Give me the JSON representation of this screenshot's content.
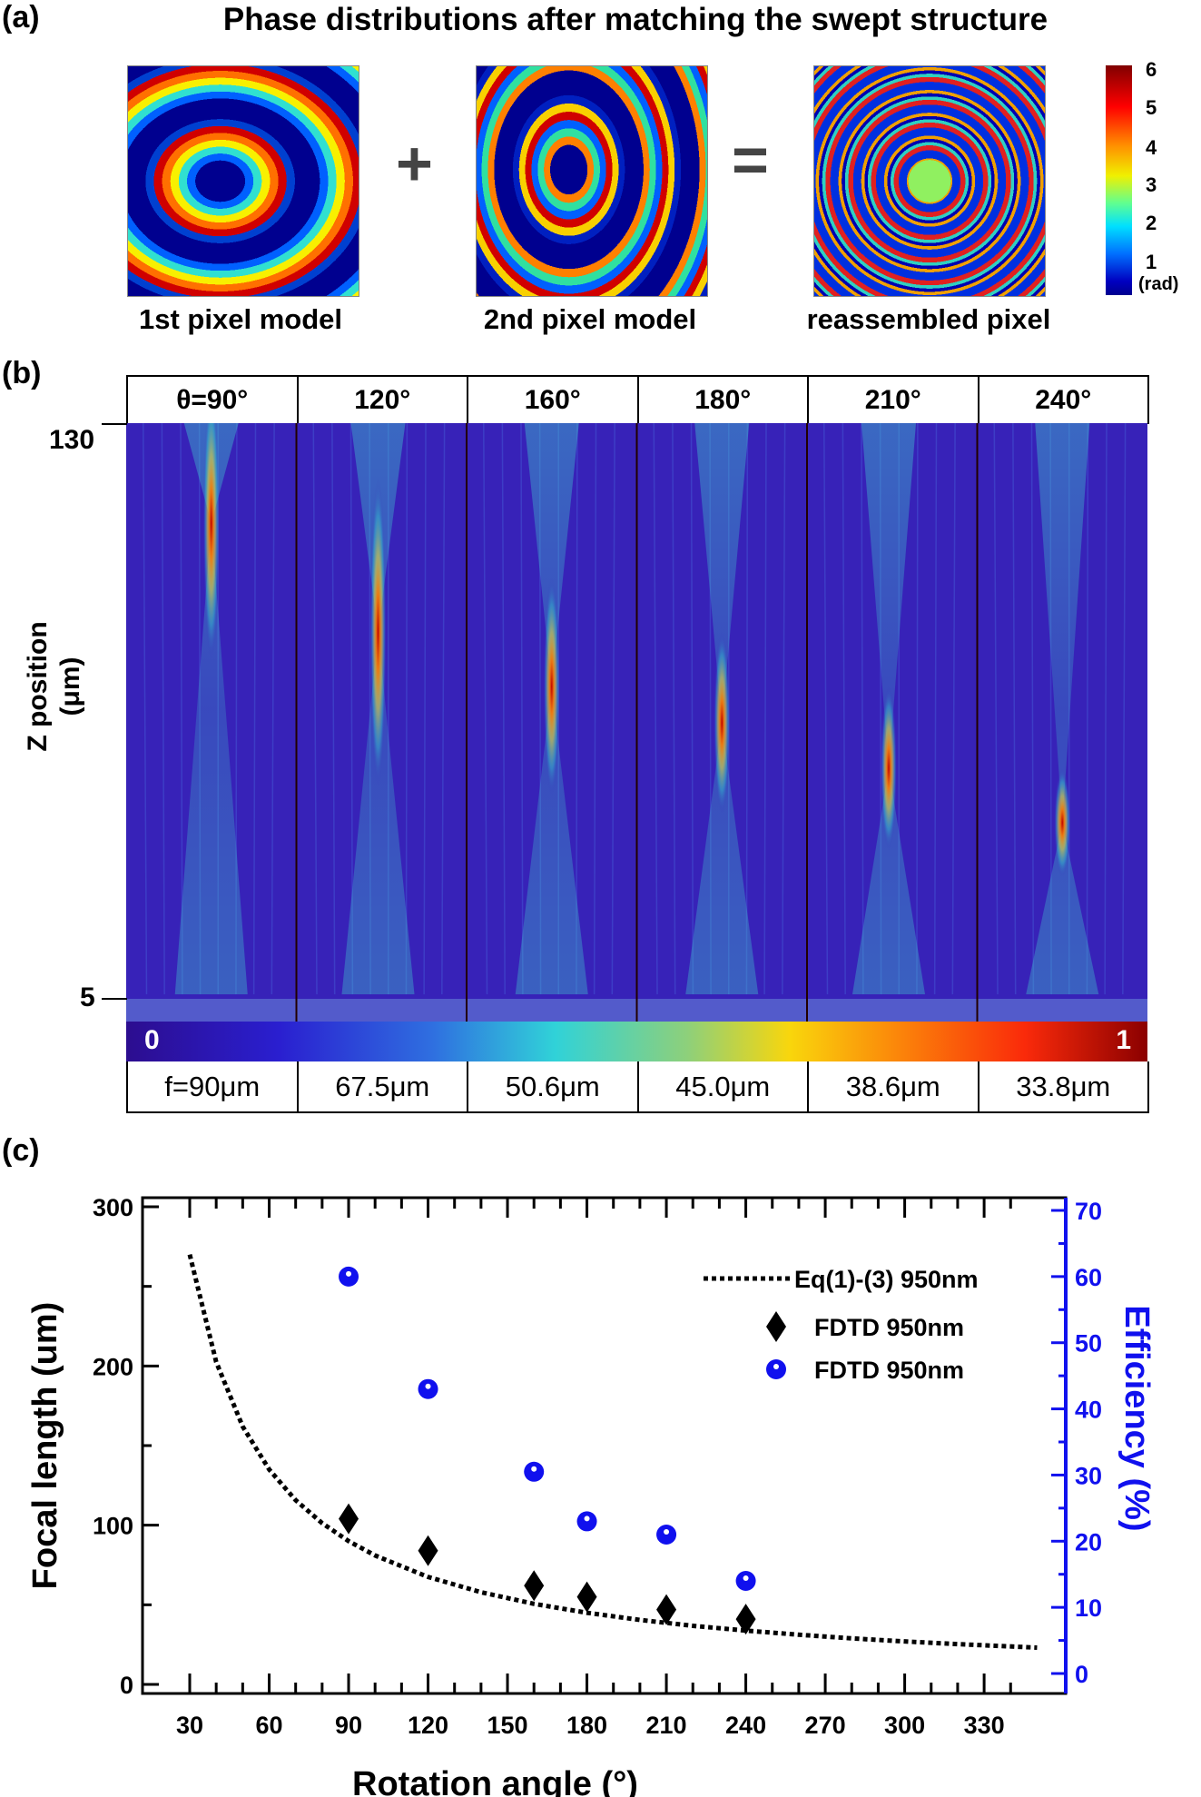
{
  "panel_a": {
    "label": "(a)",
    "title": "Phase distributions after matching the swept structure",
    "images": [
      {
        "caption": "1st pixel model"
      },
      {
        "caption": "2nd pixel model"
      },
      {
        "caption": "reassembled pixel"
      }
    ],
    "plus": "+",
    "equals": "=",
    "colorbar": {
      "ticks": [
        "6",
        "5",
        "4",
        "3",
        "2",
        "1"
      ],
      "unit": "(rad)",
      "colormap": "jet"
    }
  },
  "panel_b": {
    "label": "(b)",
    "angles": [
      "θ=90°",
      "120°",
      "160°",
      "180°",
      "210°",
      "240°"
    ],
    "focal": [
      "f=90μm",
      "67.5μm",
      "50.6μm",
      "45.0μm",
      "38.6μm",
      "33.8μm"
    ],
    "y_axis": {
      "label_line1": "Z position",
      "label_line2": "(μm)",
      "top": "130",
      "bottom": "5"
    },
    "colorbar": {
      "min": "0",
      "max": "1"
    },
    "background_color": "#3722b8"
  },
  "chart_data": {
    "label": "(c)",
    "type": "scatter",
    "xlabel": "Rotation angle (°)",
    "ylabel": "Focal length (um)",
    "y2label": "Efficiency (%)",
    "xlim": [
      10,
      360
    ],
    "ylim": [
      0,
      310
    ],
    "y2lim": [
      -2,
      72
    ],
    "xticks": [
      30,
      60,
      90,
      120,
      150,
      180,
      210,
      240,
      270,
      300,
      330
    ],
    "yticks": [
      0,
      100,
      200,
      300
    ],
    "y2ticks": [
      0,
      10,
      20,
      30,
      40,
      50,
      60,
      70
    ],
    "legend_placement": "top-right",
    "series": [
      {
        "name": "Eq(1)-(3) 950nm",
        "style": "dotted-line",
        "color": "#000000",
        "axis": "left",
        "x": [
          30,
          40,
          50,
          60,
          70,
          80,
          90,
          100,
          120,
          140,
          160,
          180,
          200,
          220,
          240,
          260,
          280,
          300,
          320,
          350
        ],
        "y": [
          270,
          202.5,
          162,
          135,
          115.7,
          101.3,
          90,
          81,
          67.5,
          57.9,
          50.6,
          45,
          40.5,
          36.8,
          33.8,
          31.2,
          28.9,
          27,
          25.3,
          23.1
        ]
      },
      {
        "name": "FDTD 950nm",
        "style": "diamond",
        "color": "#000000",
        "axis": "left",
        "x": [
          90,
          120,
          160,
          180,
          210,
          240
        ],
        "y": [
          104,
          84,
          62,
          55,
          47,
          41
        ]
      },
      {
        "name": "FDTD 950nm",
        "style": "circle",
        "color": "#1010ee",
        "axis": "right",
        "x": [
          90,
          120,
          160,
          180,
          210,
          240
        ],
        "y": [
          60,
          43,
          30.5,
          23,
          21,
          14
        ]
      }
    ]
  }
}
